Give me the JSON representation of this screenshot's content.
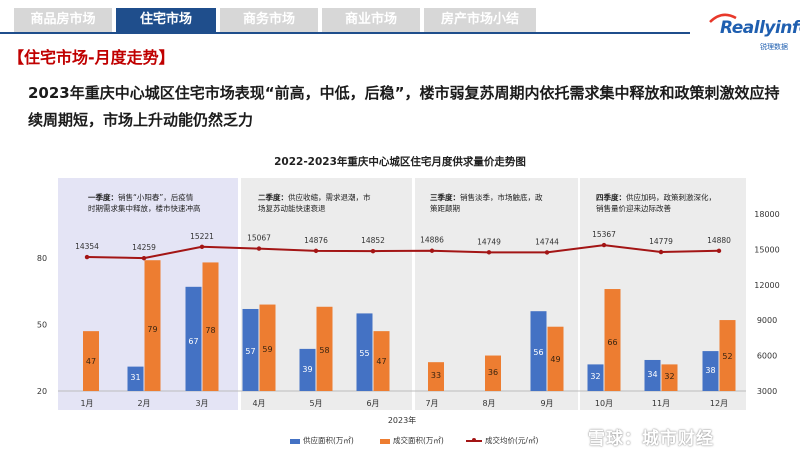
{
  "tabs": [
    {
      "label": "商品房市场",
      "active": false
    },
    {
      "label": "住宅市场",
      "active": true
    },
    {
      "label": "商务市场",
      "active": false
    },
    {
      "label": "商业市场",
      "active": false
    },
    {
      "label": "房产市场小结",
      "active": false
    }
  ],
  "logo": {
    "text": "Reallyinfo",
    "sub": "锐理数据"
  },
  "section_title": "【住宅市场-月度走势】",
  "headline": "2023年重庆中心城区住宅市场表现“前高，中低，后稳”，楼市弱复苏周期内依托需求集中释放和政策刺激效应持续周期短，市场上升动能仍然乏力",
  "watermark": "雪球：城市财经",
  "colors": {
    "supply": "#4472c4",
    "deal": "#ed7d31",
    "price": "#a31515",
    "q1_bg": "#e4e4f5",
    "q_bg": "#ececec"
  },
  "chart_data": {
    "type": "bar",
    "title": "2022-2023年重庆中心城区住宅月度供求量价走势图",
    "xlabel": "2023年",
    "categories": [
      "1月",
      "2月",
      "3月",
      "4月",
      "5月",
      "6月",
      "7月",
      "8月",
      "9月",
      "10月",
      "11月",
      "12月"
    ],
    "series": [
      {
        "name": "供应面积(万㎡)",
        "type": "bar",
        "axis": "left",
        "values": [
          null,
          31,
          67,
          57,
          39,
          55,
          null,
          null,
          56,
          32,
          34,
          38
        ]
      },
      {
        "name": "成交面积(万㎡)",
        "type": "bar",
        "axis": "left",
        "values": [
          47,
          79,
          78,
          59,
          58,
          47,
          33,
          36,
          49,
          66,
          32,
          52
        ]
      },
      {
        "name": "成交均价(元/㎡)",
        "type": "line",
        "axis": "right",
        "values": [
          14354,
          14259,
          15221,
          15067,
          14876,
          14852,
          14886,
          14749,
          14744,
          15367,
          14779,
          14880
        ]
      }
    ],
    "y_left": {
      "ticks": [
        20,
        50,
        80
      ]
    },
    "y_right": {
      "ticks": [
        3000,
        6000,
        9000,
        12000,
        15000,
        18000
      ],
      "range": [
        3000,
        18000
      ]
    },
    "quarters": [
      {
        "lines": [
          "一季度：销售“小阳春”，后疫情",
          "时期需求集中释放，楼市快速冲高"
        ],
        "lead": "一季度："
      },
      {
        "lines": [
          "二季度：供应收缩，需求退潮，市",
          "场复苏动能快速衰退"
        ],
        "lead": "二季度："
      },
      {
        "lines": [
          "三季度：销售淡季，市场触底，政",
          "策距颠期"
        ],
        "lead": "三季度："
      },
      {
        "lines": [
          "四季度：供应加码，政策刺激深化，",
          "销售量价迎来边际改善"
        ],
        "lead": "四季度："
      }
    ]
  }
}
